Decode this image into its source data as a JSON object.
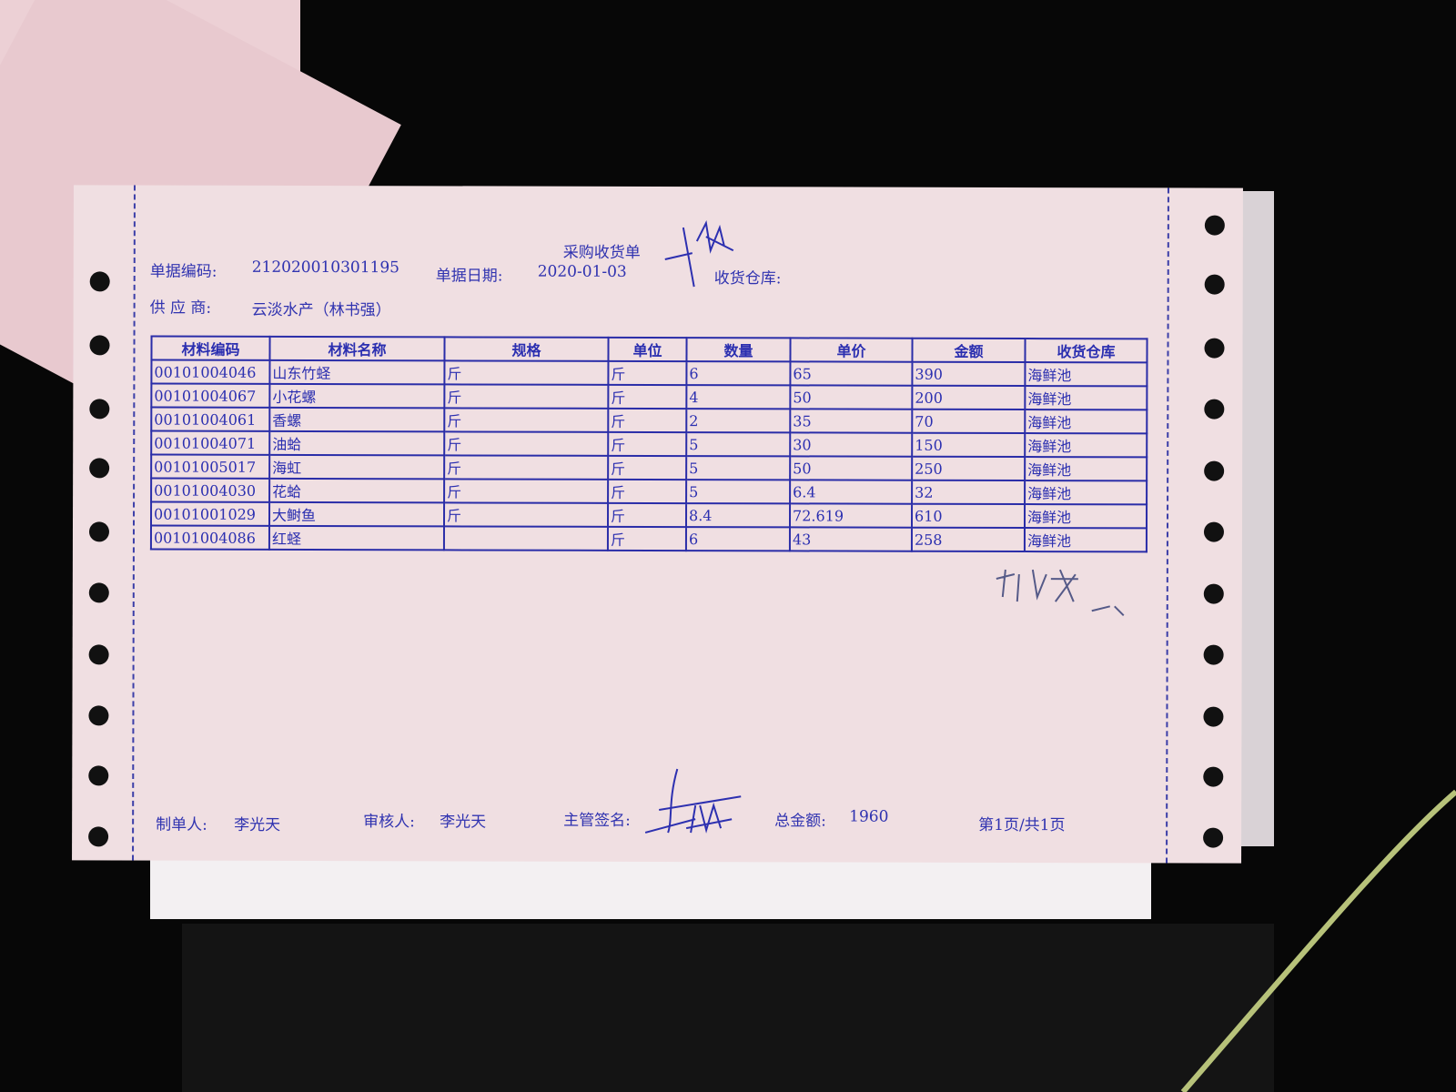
{
  "document": {
    "title": "采购收货单",
    "doc_no_label": "单据编码:",
    "doc_no": "212020010301195",
    "doc_date_label": "单据日期:",
    "doc_date": "2020-01-03",
    "warehouse_label": "收货仓库:",
    "supplier_label": "供 应 商:",
    "supplier": "云淡水产（林书强）"
  },
  "table": {
    "headers": [
      "材料编码",
      "材料名称",
      "规格",
      "单位",
      "数量",
      "单价",
      "金额",
      "收货仓库"
    ],
    "rows": [
      [
        "00101004046",
        "山东竹蛏",
        "斤",
        "斤",
        "6",
        "65",
        "390",
        "海鲜池"
      ],
      [
        "00101004067",
        "小花螺",
        "斤",
        "斤",
        "4",
        "50",
        "200",
        "海鲜池"
      ],
      [
        "00101004061",
        "香螺",
        "斤",
        "斤",
        "2",
        "35",
        "70",
        "海鲜池"
      ],
      [
        "00101004071",
        "油蛤",
        "斤",
        "斤",
        "5",
        "30",
        "150",
        "海鲜池"
      ],
      [
        "00101005017",
        "海虹",
        "斤",
        "斤",
        "5",
        "50",
        "250",
        "海鲜池"
      ],
      [
        "00101004030",
        "花蛤",
        "斤",
        "斤",
        "5",
        "6.4",
        "32",
        "海鲜池"
      ],
      [
        "00101001029",
        "大鲥鱼",
        "斤",
        "斤",
        "8.4",
        "72.619",
        "610",
        "海鲜池"
      ],
      [
        "00101004086",
        "红蛏",
        "",
        "斤",
        "6",
        "43",
        "258",
        "海鲜池"
      ]
    ]
  },
  "footer": {
    "maker_label": "制单人:",
    "maker": "李光天",
    "reviewer_label": "审核人:",
    "reviewer": "李光天",
    "supervisor_label": "主管签名:",
    "total_label": "总金额:",
    "total": "1960",
    "page": "第1页/共1页"
  },
  "colors": {
    "ink": "#2d30b0",
    "paper": "#f0dfe2",
    "background": "#070707"
  }
}
